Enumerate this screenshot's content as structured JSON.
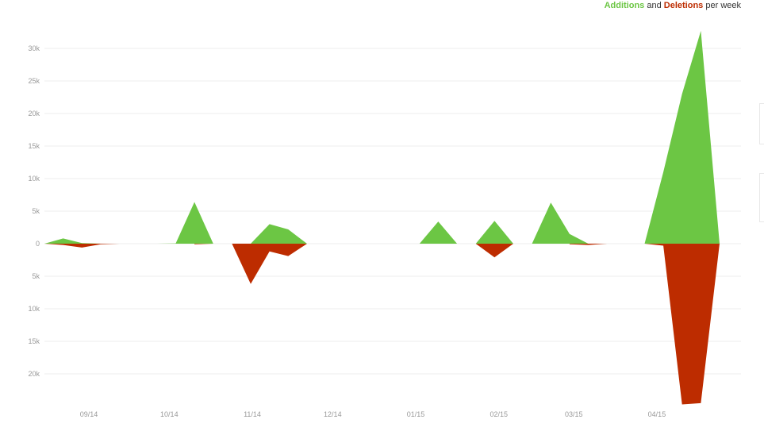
{
  "legend": {
    "additions_label": "Additions",
    "and_text": "and",
    "deletions_label": "Deletions",
    "per_text": "per week",
    "additions_color": "#6cc644",
    "deletions_color": "#bd2c00"
  },
  "chart_data": {
    "type": "area",
    "title": "",
    "xlabel": "",
    "ylabel": "",
    "grid": true,
    "legend_position": "top-right",
    "ylim": [
      -24000,
      31000
    ],
    "y_ticks": [
      {
        "value": 30000,
        "label": "30k"
      },
      {
        "value": 25000,
        "label": "25k"
      },
      {
        "value": 20000,
        "label": "20k"
      },
      {
        "value": 15000,
        "label": "15k"
      },
      {
        "value": 10000,
        "label": "10k"
      },
      {
        "value": 5000,
        "label": "5k"
      },
      {
        "value": 0,
        "label": "0"
      },
      {
        "value": -5000,
        "label": "5k"
      },
      {
        "value": -10000,
        "label": "10k"
      },
      {
        "value": -15000,
        "label": "15k"
      },
      {
        "value": -20000,
        "label": "20k"
      }
    ],
    "x_ticks": [
      {
        "date": "2014-09-01",
        "label": "09/14"
      },
      {
        "date": "2014-10-01",
        "label": "10/14"
      },
      {
        "date": "2014-11-01",
        "label": "11/14"
      },
      {
        "date": "2014-12-01",
        "label": "12/14"
      },
      {
        "date": "2015-01-01",
        "label": "01/15"
      },
      {
        "date": "2015-02-01",
        "label": "02/15"
      },
      {
        "date": "2015-03-01",
        "label": "03/15"
      },
      {
        "date": "2015-04-01",
        "label": "04/15"
      }
    ],
    "series": [
      {
        "name": "Additions",
        "color": "#6cc644",
        "segments": [
          [
            [
              "2014-08-24",
              0
            ],
            [
              "2014-08-31",
              800
            ],
            [
              "2014-09-07",
              100
            ],
            [
              "2014-09-14",
              0
            ],
            [
              "2014-09-21",
              0
            ]
          ],
          [
            [
              "2014-10-05",
              0
            ],
            [
              "2014-10-12",
              50
            ],
            [
              "2014-10-19",
              6400
            ],
            [
              "2014-10-26",
              0
            ]
          ],
          [
            [
              "2014-11-09",
              0
            ],
            [
              "2014-11-16",
              3000
            ],
            [
              "2014-11-23",
              2200
            ],
            [
              "2014-11-30",
              0
            ]
          ],
          [
            [
              "2015-01-11",
              0
            ],
            [
              "2015-01-18",
              3400
            ],
            [
              "2015-01-25",
              0
            ]
          ],
          [
            [
              "2015-02-01",
              0
            ],
            [
              "2015-02-08",
              3500
            ],
            [
              "2015-02-15",
              0
            ]
          ],
          [
            [
              "2015-02-22",
              0
            ],
            [
              "2015-03-01",
              6300
            ],
            [
              "2015-03-08",
              1500
            ],
            [
              "2015-03-15",
              0
            ]
          ],
          [
            [
              "2015-04-05",
              0
            ],
            [
              "2015-04-12",
              11000
            ],
            [
              "2015-04-19",
              23000
            ],
            [
              "2015-04-26",
              32700
            ],
            [
              "2015-05-03",
              0
            ]
          ]
        ]
      },
      {
        "name": "Deletions",
        "color": "#bd2c00",
        "segments": [
          [
            [
              "2014-08-24",
              0
            ],
            [
              "2014-08-31",
              -200
            ],
            [
              "2014-09-07",
              -600
            ],
            [
              "2014-09-14",
              -100
            ],
            [
              "2014-09-21",
              0
            ]
          ],
          [
            [
              "2014-10-19",
              -100
            ],
            [
              "2014-10-26",
              0
            ]
          ],
          [
            [
              "2014-11-02",
              0
            ],
            [
              "2014-11-09",
              -6200
            ],
            [
              "2014-11-16",
              -1200
            ],
            [
              "2014-11-23",
              -1900
            ],
            [
              "2014-11-30",
              0
            ]
          ],
          [
            [
              "2015-02-01",
              0
            ],
            [
              "2015-02-08",
              -2100
            ],
            [
              "2015-02-15",
              0
            ]
          ],
          [
            [
              "2015-03-08",
              -100
            ],
            [
              "2015-03-15",
              -200
            ],
            [
              "2015-03-22",
              0
            ]
          ],
          [
            [
              "2015-04-05",
              0
            ],
            [
              "2015-04-12",
              -300
            ],
            [
              "2015-04-19",
              -24700
            ],
            [
              "2015-04-26",
              -24500
            ],
            [
              "2015-05-03",
              0
            ]
          ]
        ]
      }
    ]
  }
}
